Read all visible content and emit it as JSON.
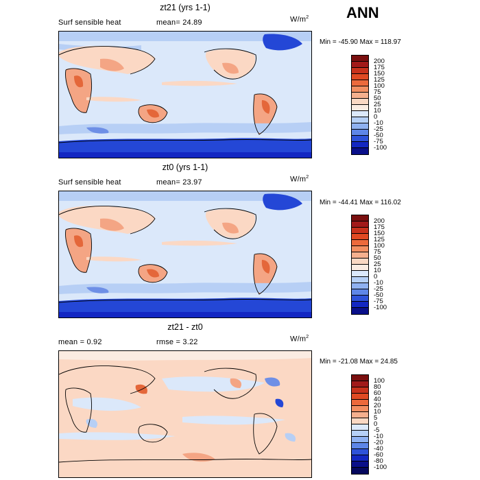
{
  "season": "ANN",
  "units_label": "W/m",
  "units_sup": "2",
  "panels": [
    {
      "title": "zt21 (yrs 1-1)",
      "left_text": "Surf sensible heat",
      "stat_text": "mean=  24.89",
      "minmax": "Min = -45.90 Max = 118.97",
      "colorbar_labels": [
        "200",
        "175",
        "150",
        "125",
        "100",
        "75",
        "50",
        "25",
        "10",
        "0",
        "-10",
        "-25",
        "-50",
        "-75",
        "-100"
      ],
      "colorbar_colors": [
        "#7a0f0f",
        "#a11a1a",
        "#c8321c",
        "#e04a23",
        "#ec6a3c",
        "#f28f62",
        "#f5b08e",
        "#fad8c3",
        "#fbece2",
        "#dce9fb",
        "#b6d0f6",
        "#8fb1f1",
        "#5e86e8",
        "#2e52d9",
        "#1327c2",
        "#0a0f8a"
      ]
    },
    {
      "title": "zt0 (yrs 1-1)",
      "left_text": "Surf sensible heat",
      "stat_text": "mean=  23.97",
      "minmax": "Min = -44.41 Max = 116.02",
      "colorbar_labels": [
        "200",
        "175",
        "150",
        "125",
        "100",
        "75",
        "50",
        "25",
        "10",
        "0",
        "-10",
        "-25",
        "-50",
        "-75",
        "-100"
      ],
      "colorbar_colors": [
        "#7a0f0f",
        "#a11a1a",
        "#c8321c",
        "#e04a23",
        "#ec6a3c",
        "#f28f62",
        "#f5b08e",
        "#fad8c3",
        "#fbece2",
        "#dce9fb",
        "#b6d0f6",
        "#8fb1f1",
        "#5e86e8",
        "#2e52d9",
        "#1327c2",
        "#0a0f8a"
      ]
    },
    {
      "title": "zt21 - zt0",
      "left_text": "mean =   0.92",
      "stat_text": "rmse =   3.22",
      "minmax": "Min = -21.08 Max =  24.85",
      "colorbar_labels": [
        "100",
        "80",
        "60",
        "40",
        "20",
        "10",
        "5",
        "0",
        "-5",
        "-10",
        "-20",
        "-40",
        "-60",
        "-80",
        "-100"
      ],
      "colorbar_colors": [
        "#7a0f0f",
        "#a11a1a",
        "#c8321c",
        "#e04a23",
        "#ec6a3c",
        "#f28f62",
        "#f5b08e",
        "#fad8c3",
        "#dce9fb",
        "#b6d0f6",
        "#8fb1f1",
        "#5e86e8",
        "#2e52d9",
        "#1327c2",
        "#0a0f8a",
        "#06085e"
      ]
    }
  ],
  "palette": {
    "ocean_neutral": "#dbe8fa",
    "warm_light": "#fbd8c4",
    "warm_mid": "#f4a584",
    "warm_strong": "#e4673a",
    "cool_light": "#b7cff5",
    "cool_mid": "#6e8fe6",
    "cool_strong": "#2447d6"
  }
}
